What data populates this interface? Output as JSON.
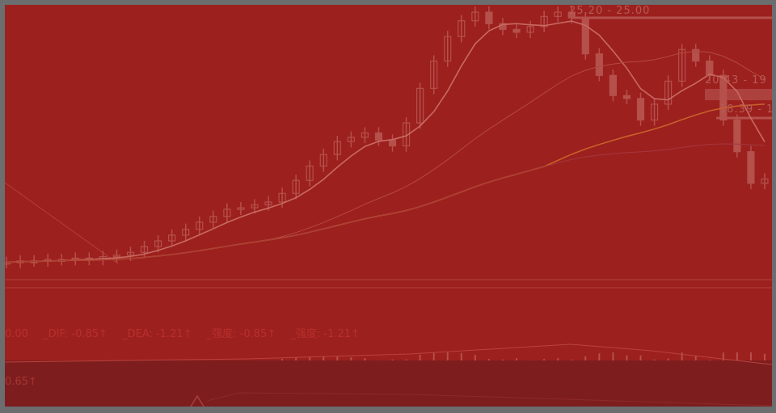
{
  "colors": {
    "background": "#9c201e",
    "lower_panel": "#7d1d1e",
    "frame": "#6b6d6f",
    "candle": "#b5504b",
    "ma_short": "#c86a62",
    "ma_mid": "#b34a40",
    "ma_long": "#c8602a",
    "ma_xlong": "#a3383e"
  },
  "price_labels": {
    "high": "25.20 - 25.00",
    "mid": "20.43 - 19",
    "low": "18.39 - 1"
  },
  "indicator": {
    "first": "0.00",
    "dif": "_DIF: -0.85↑",
    "dea": "_DEA: -1.21↑",
    "strength1": "_强度: -0.85↑",
    "strength2": "_强度: -1.21↑"
  },
  "lower_panel": {
    "value": "0.65↑"
  },
  "price_series": [
    7.8,
    7.9,
    7.9,
    8.0,
    8.0,
    8.1,
    8.0,
    8.2,
    8.3,
    8.5,
    8.9,
    9.3,
    9.7,
    10.1,
    10.6,
    11.0,
    11.5,
    11.6,
    11.8,
    12.0,
    12.6,
    13.5,
    14.5,
    15.3,
    16.2,
    16.5,
    16.8,
    16.3,
    15.9,
    17.5,
    19.9,
    21.8,
    23.5,
    24.6,
    25.2,
    24.4,
    24.0,
    23.8,
    24.2,
    24.9,
    25.2,
    24.8,
    22.3,
    20.8,
    19.4,
    19.2,
    17.7,
    18.8,
    20.4,
    22.6,
    21.8,
    20.8,
    17.7,
    15.5,
    13.3,
    13.6
  ]
}
